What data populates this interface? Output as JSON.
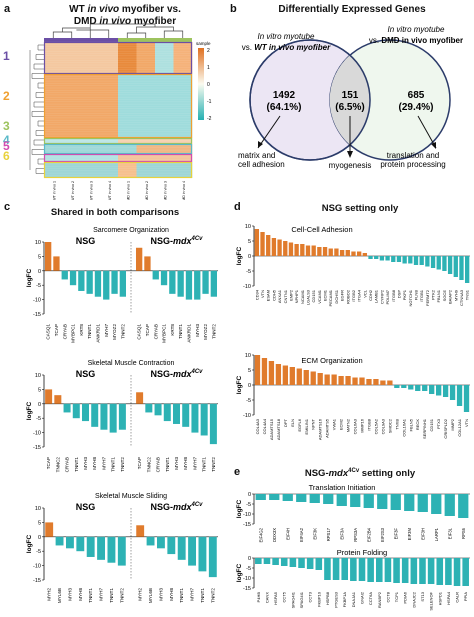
{
  "colors": {
    "up": "#e07b2c",
    "down": "#2db2b4",
    "circle_left": "#ece6f4",
    "circle_right": "#e9f4e8",
    "circle_stroke": "#2c3c6a",
    "cluster1": "#6b4fa5",
    "cluster2": "#f0a030",
    "cluster3": "#9dc35e",
    "cluster4": "#59b9c8",
    "cluster5": "#d14cb0",
    "cluster6": "#e8d23c"
  },
  "panel_a": {
    "label": "a",
    "title_1": "WT ",
    "title_2": "in vivo",
    "title_3": " myofiber vs.",
    "title_4": "DMD ",
    "title_5": "in vivo",
    "title_6": " myofiber",
    "legend_title": "sample",
    "legend_ticks": [
      "2",
      "1",
      "0",
      "-1",
      "-2"
    ],
    "clusters": [
      "1",
      "2",
      "3",
      "4",
      "5",
      "6"
    ],
    "columns": [
      "WT in vivo 1",
      "WT in vivo 2",
      "WT in vivo 3",
      "WT in vivo 4",
      "DMD in vivo 1",
      "DMD in vivo 2",
      "DMD in vivo 3",
      "DMD in vivo 4"
    ]
  },
  "panel_b": {
    "label": "b",
    "title": "Differentially Expressed Genes",
    "left_line1": "In vitro myotube",
    "left_line2a": "vs. ",
    "left_line2b": "WT in vivo myofiber",
    "right_line1": "In vitro myotube",
    "right_line2a": "vs. ",
    "right_line2b": "DMD in vivo myofiber",
    "left_count": "1492",
    "left_pct": "(64.1%)",
    "mid_count": "151",
    "mid_pct": "(6.5%)",
    "right_count": "685",
    "right_pct": "(29.4%)",
    "ann_left": "matrix and\ncell adhesion",
    "ann_mid": "myogenesis",
    "ann_right": "translation and\nprotein processing"
  },
  "panel_c": {
    "label": "c",
    "title": "Shared in both comparisons",
    "group_nsg": "NSG",
    "group_mdx_base": "NSG-",
    "group_mdx_ital": "mdx",
    "group_mdx_sup": "4Cv",
    "ylabel": "logFC"
  },
  "panel_d": {
    "label": "d",
    "title": "NSG setting only",
    "ylabel": "logFC"
  },
  "panel_e": {
    "label": "e",
    "title_base": "NSG-",
    "title_ital": "mdx",
    "title_sup": "4Cv",
    "title_rest": " setting only",
    "ylabel": "logFC"
  },
  "chart_data": [
    {
      "id": "c1",
      "type": "bar",
      "title": "Sarcomere Organization",
      "ylabel": "logFC",
      "ylim": [
        -15,
        10
      ],
      "yticks": [
        10,
        5,
        0,
        -5,
        -10,
        -15
      ],
      "categories": [
        "CASQ1",
        "TCAP",
        "CRYAB",
        "MYBPC1",
        "KRT8",
        "TNNT1",
        "ANKRD1",
        "MYH7",
        "MYOZ2",
        "TNNT2",
        "CASQ1",
        "TCAP",
        "CRYAB",
        "MYBPC1",
        "KRT8",
        "TNNT1",
        "ANKRD1",
        "MYH3",
        "MYOZ2",
        "TNNT2"
      ],
      "values": [
        10,
        5,
        -3,
        -5,
        -7,
        -8,
        -9,
        -10,
        -8,
        -9,
        8,
        5,
        -3,
        -5,
        -8,
        -9,
        -10,
        -10,
        -8,
        -9
      ]
    },
    {
      "id": "c2",
      "type": "bar",
      "title": "Skeletal Muscle Contraction",
      "ylabel": "logFC",
      "ylim": [
        -15,
        10
      ],
      "yticks": [
        10,
        5,
        0,
        -5,
        -10,
        -15
      ],
      "categories": [
        "TCAP",
        "TNNC2",
        "CRYAB",
        "TNNT1",
        "MYH3",
        "MYH8",
        "MYH7",
        "TNNT1",
        "TNNT2",
        "TCAP",
        "TNNC2",
        "CRYAB",
        "TNNT1",
        "MYH3",
        "MYH8",
        "MYH7",
        "TNNT1",
        "TNNT2"
      ],
      "values": [
        5,
        3,
        -3,
        -5,
        -6,
        -8,
        -9,
        -10,
        -9,
        4,
        -3,
        -4,
        -6,
        -7,
        -8,
        -10,
        -11,
        -14
      ]
    },
    {
      "id": "c3",
      "type": "bar",
      "title": "Skeletal Muscle Sliding",
      "ylabel": "logFC",
      "ylim": [
        -15,
        10
      ],
      "yticks": [
        10,
        5,
        0,
        -5,
        -10,
        -15
      ],
      "categories": [
        "MYH2",
        "MYL6B",
        "MYH3",
        "MYH8",
        "TNNT1",
        "MYH7",
        "TNNT1",
        "TNNT2",
        "MYH2",
        "MYL6B",
        "MYH3",
        "MYH8",
        "TNNT1",
        "MYH7",
        "TNNT1",
        "TNNT2"
      ],
      "values": [
        5,
        -3,
        -4,
        -5,
        -7,
        -8,
        -9,
        -10,
        4,
        -3,
        -4,
        -6,
        -8,
        -10,
        -12,
        -14
      ]
    },
    {
      "id": "d1",
      "type": "bar",
      "title": "Cell-Cell Adhesion",
      "ylabel": "logFC",
      "ylim": [
        -10,
        10
      ],
      "yticks": [
        10,
        5,
        0,
        -5,
        -10
      ],
      "categories": [
        "CD34",
        "VTN",
        "ESAM",
        "CDH5",
        "ANXA1",
        "CNTN1",
        "EMP2",
        "NPHP1",
        "NCAM1",
        "LGALS3",
        "CD151",
        "VCAM1",
        "ECM1",
        "PECAM1",
        "DCHS1",
        "EGFR",
        "ROBO2",
        "ITGB2",
        "ITGA4",
        "VCL",
        "CDH2",
        "LAMB1",
        "CYFIP2",
        "PDLIM7",
        "ITGB8",
        "DSP",
        "PKP1",
        "NOTCH1",
        "FLNB",
        "ITGB1",
        "FERMT2",
        "PTK2",
        "FBLN1",
        "SGCE",
        "BAIAP2",
        "MYH9",
        "CTNNA3",
        "TNS1"
      ],
      "values": [
        9,
        8,
        7,
        6,
        5.5,
        5,
        4.5,
        4,
        4,
        3.5,
        3.5,
        3,
        3,
        2.5,
        2.5,
        2,
        2,
        1.5,
        1.5,
        1,
        -1,
        -1,
        -1.5,
        -1.5,
        -2,
        -2,
        -2.5,
        -2.5,
        -3,
        -3,
        -3.5,
        -4,
        -4.5,
        -5,
        -6,
        -7,
        -8,
        -9
      ]
    },
    {
      "id": "d2",
      "type": "bar",
      "title": "ECM Organization",
      "ylabel": "logFC",
      "ylim": [
        -10,
        10
      ],
      "yticks": [
        10,
        5,
        0,
        -5,
        -10
      ],
      "categories": [
        "COL4A3",
        "COL4A4",
        "ADAMTS15",
        "ADAMTS18",
        "DPT",
        "ELN",
        "EGFL6",
        "EMILIN1",
        "NPNT",
        "ADAMTS16",
        "ADAMTS5",
        "VWA1",
        "ECM2",
        "MATN2",
        "COL6A3",
        "MMP16",
        "ITGB8",
        "COL5A2",
        "COL9A3",
        "SMOC2",
        "TNXB",
        "COL16A1",
        "FBLN5",
        "RECK",
        "SERPINH1",
        "CD151",
        "PTX3",
        "CRISPLD2",
        "MMP2",
        "COL12A1",
        "VTN"
      ],
      "values": [
        10,
        9,
        8,
        7,
        6.5,
        6,
        5.5,
        5,
        4.5,
        4,
        3.5,
        3.5,
        3,
        3,
        2.5,
        2.5,
        2,
        2,
        1.5,
        1.5,
        -1,
        -1,
        -1.5,
        -2,
        -2,
        -3,
        -3.5,
        -4,
        -5,
        -7,
        -9
      ]
    },
    {
      "id": "e1",
      "type": "bar",
      "title": "Translation Initiation",
      "ylabel": "logFC",
      "ylim": [
        -15,
        0
      ],
      "yticks": [
        0,
        -5,
        -10,
        -15
      ],
      "categories": [
        "EIF4G2",
        "DDX3X",
        "EIF4H",
        "EIF4A2",
        "EIF3K",
        "RPS17",
        "EIF3A",
        "RPS3A",
        "EIF2B4",
        "EIF2S3",
        "EIF3F",
        "EIF3M",
        "EIF3H",
        "LARP1",
        "EIF3L",
        "RPS6"
      ],
      "values": [
        -3,
        -3,
        -3.5,
        -4,
        -4.5,
        -5,
        -6,
        -6.5,
        -7,
        -7.5,
        -8,
        -8.5,
        -9,
        -10,
        -11,
        -12
      ]
    },
    {
      "id": "e2",
      "type": "bar",
      "title": "Protein Folding",
      "ylabel": "logFC",
      "ylim": [
        -15,
        0
      ],
      "yticks": [
        0,
        -5,
        -10,
        -15
      ],
      "categories": [
        "P4HB",
        "CANX",
        "HSPA5",
        "CCT5",
        "SPAG4I1",
        "SPAG4I1",
        "CCT3",
        "FKBP10",
        "HSPB8",
        "PTGES3",
        "FKBP1A",
        "DNAJA1",
        "GNAI2",
        "CCT6A",
        "RANBP2",
        "CCT8",
        "TCP1",
        "PDIA6",
        "DNAJC2",
        "ST13",
        "SELENOF",
        "HSPD1",
        "HSPA4",
        "CALR",
        "PPIA"
      ],
      "values": [
        -3,
        -3,
        -3.5,
        -4,
        -4.5,
        -5,
        -5.5,
        -6,
        -11,
        -11,
        -11,
        -11.5,
        -11.5,
        -12,
        -12,
        -12,
        -12.5,
        -12.5,
        -13,
        -13,
        -13,
        -13.5,
        -13.5,
        -14,
        -14
      ]
    }
  ]
}
